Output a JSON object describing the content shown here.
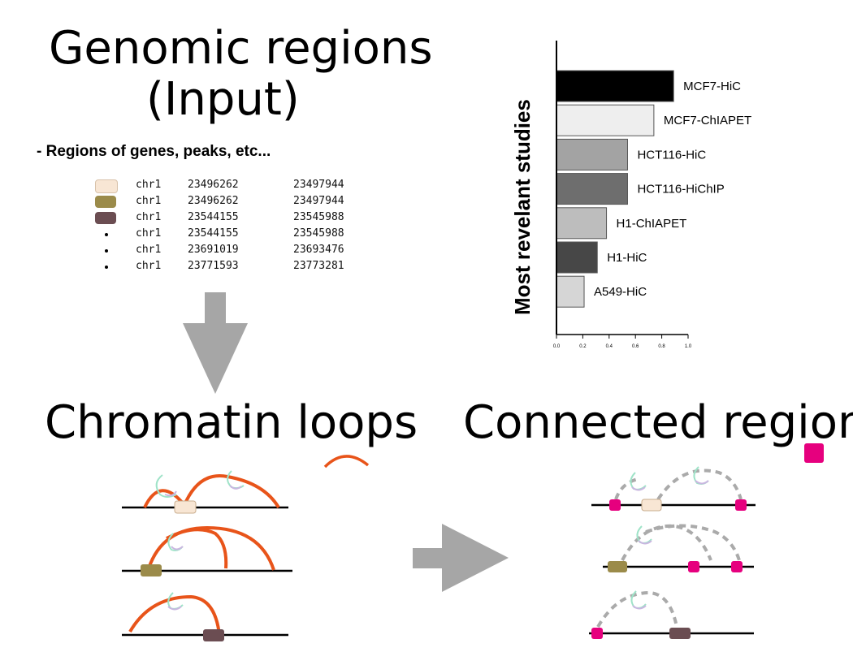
{
  "input": {
    "title_line1": "Genomic regions",
    "title_line2": "(Input)",
    "subtitle": "- Regions of genes, peaks, etc...",
    "rows": [
      {
        "chr": "chr1",
        "start": "23496262",
        "end": "23497944",
        "marker": "swatch",
        "color": "#f8e6d4"
      },
      {
        "chr": "chr1",
        "start": "23496262",
        "end": "23497944",
        "marker": "swatch",
        "color": "#9b8b4a"
      },
      {
        "chr": "chr1",
        "start": "23544155",
        "end": "23545988",
        "marker": "swatch",
        "color": "#6b4d52"
      },
      {
        "chr": "chr1",
        "start": "23544155",
        "end": "23545988",
        "marker": "dot",
        "color": "#000000"
      },
      {
        "chr": "chr1",
        "start": "23691019",
        "end": "23693476",
        "marker": "dot",
        "color": "#000000"
      },
      {
        "chr": "chr1",
        "start": "23771593",
        "end": "23773281",
        "marker": "dot",
        "color": "#000000"
      }
    ]
  },
  "loops": {
    "title": "Chromatin loops",
    "arc_color": "#e8541a"
  },
  "connected": {
    "title": "Connected region",
    "node_color": "#e6007e",
    "dash_color": "#aaaaaa"
  },
  "chart_data": {
    "type": "bar",
    "orientation": "horizontal",
    "ylabel": "Most revelant studies",
    "xlim": [
      0,
      1.0
    ],
    "xticks": [
      "0.0",
      "0.2",
      "0.4",
      "0.6",
      "0.8",
      "1.0"
    ],
    "categories": [
      "MCF7-HiC",
      "MCF7-ChIAPET",
      "HCT116-HiC",
      "HCT116-HiChIP",
      "H1-ChIAPET",
      "H1-HiC",
      "A549-HiC"
    ],
    "values": [
      0.89,
      0.74,
      0.54,
      0.54,
      0.38,
      0.31,
      0.21
    ],
    "colors": [
      "#000000",
      "#eeeeee",
      "#a3a3a3",
      "#6e6e6e",
      "#bdbdbd",
      "#474747",
      "#d6d6d6"
    ]
  }
}
